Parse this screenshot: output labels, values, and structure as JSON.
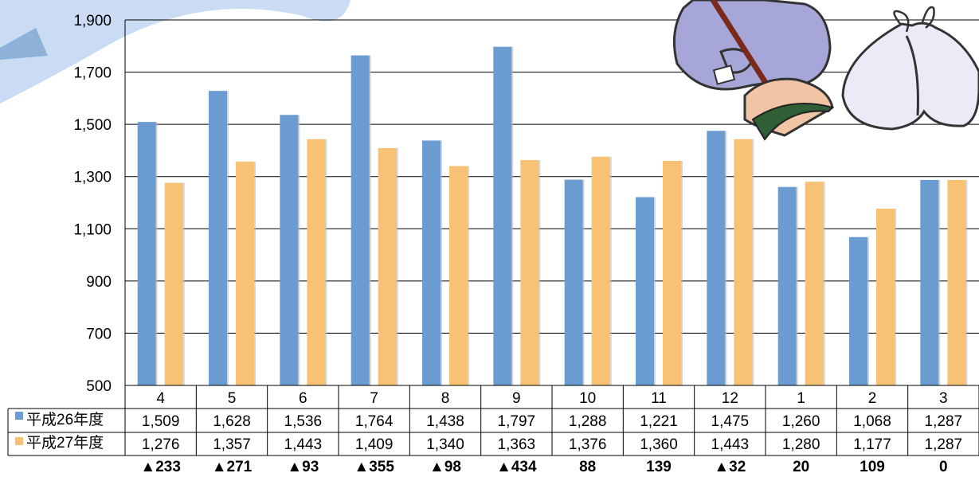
{
  "chart_data": {
    "type": "bar",
    "categories": [
      "4",
      "5",
      "6",
      "7",
      "8",
      "9",
      "10",
      "11",
      "12",
      "1",
      "2",
      "3"
    ],
    "series": [
      {
        "name": "平成26年度",
        "values": [
          1509,
          1628,
          1536,
          1764,
          1438,
          1797,
          1288,
          1221,
          1475,
          1260,
          1068,
          1287
        ]
      },
      {
        "name": "平成27年度",
        "values": [
          1276,
          1357,
          1443,
          1409,
          1340,
          1363,
          1376,
          1360,
          1443,
          1280,
          1177,
          1287
        ]
      }
    ],
    "table_values": [
      [
        "1,509",
        "1,628",
        "1,536",
        "1,764",
        "1,438",
        "1,797",
        "1,288",
        "1,221",
        "1,475",
        "1,260",
        "1,068",
        "1,287"
      ],
      [
        "1,276",
        "1,357",
        "1,443",
        "1,409",
        "1,340",
        "1,363",
        "1,376",
        "1,360",
        "1,443",
        "1,280",
        "1,177",
        "1,287"
      ]
    ],
    "differences": [
      "▲233",
      "▲271",
      "▲93",
      "▲355",
      "▲98",
      "▲434",
      "88",
      "139",
      "▲32",
      "20",
      "109",
      "0"
    ],
    "y_ticks": [
      "500",
      "700",
      "900",
      "1,100",
      "1,300",
      "1,500",
      "1,700",
      "1,900"
    ],
    "y_tick_values": [
      500,
      700,
      900,
      1100,
      1300,
      1500,
      1700,
      1900
    ],
    "ylim": [
      500,
      1900
    ],
    "grid": true,
    "legend": "data-table-left",
    "colors": {
      "series1": "#6a9bd1",
      "series2": "#f7c274",
      "grid": "#000000",
      "decor_wave": "#c9dcf3"
    },
    "decorations": [
      "broom-sweeping-figure",
      "garbage-bags"
    ]
  }
}
